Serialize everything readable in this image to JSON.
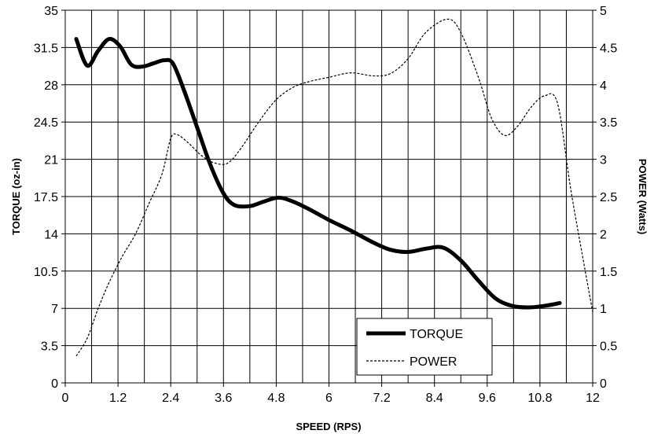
{
  "chart_data": {
    "type": "line",
    "title": "",
    "xlabel": "SPEED (RPS)",
    "ylabel": "TORQUE (oz-in)",
    "y2label": "POWER (Watts)",
    "xlim": [
      0,
      12
    ],
    "ylim": [
      0,
      35
    ],
    "y2lim": [
      0,
      5
    ],
    "x_ticks": [
      "0",
      "1.2",
      "2.4",
      "3.6",
      "4.8",
      "6",
      "7.2",
      "8.4",
      "9.6",
      "10.8",
      "12"
    ],
    "y_ticks": [
      "0",
      "3.5",
      "7",
      "10.5",
      "14",
      "17.5",
      "21",
      "24.5",
      "28",
      "31.5",
      "35"
    ],
    "y2_ticks": [
      "0",
      "0.5",
      "1",
      "1.5",
      "2",
      "2.5",
      "3",
      "3.5",
      "4",
      "4.5",
      "5"
    ],
    "grid": true,
    "legend_position": "bottom-center",
    "series": [
      {
        "name": "TORQUE",
        "axis": "left",
        "style": "solid-thick",
        "color": "#000000",
        "points": [
          [
            0.25,
            32.3
          ],
          [
            0.5,
            29.8
          ],
          [
            0.75,
            31.2
          ],
          [
            1.0,
            32.3
          ],
          [
            1.25,
            31.6
          ],
          [
            1.5,
            29.9
          ],
          [
            1.75,
            29.7
          ],
          [
            2.0,
            30.0
          ],
          [
            2.25,
            30.3
          ],
          [
            2.45,
            30.0
          ],
          [
            2.7,
            27.5
          ],
          [
            3.0,
            24.0
          ],
          [
            3.3,
            20.5
          ],
          [
            3.6,
            17.8
          ],
          [
            3.85,
            16.7
          ],
          [
            4.2,
            16.6
          ],
          [
            4.5,
            17.0
          ],
          [
            4.85,
            17.4
          ],
          [
            5.2,
            17.0
          ],
          [
            5.6,
            16.2
          ],
          [
            6.0,
            15.3
          ],
          [
            6.5,
            14.3
          ],
          [
            7.0,
            13.2
          ],
          [
            7.4,
            12.5
          ],
          [
            7.8,
            12.3
          ],
          [
            8.2,
            12.6
          ],
          [
            8.6,
            12.7
          ],
          [
            9.0,
            11.5
          ],
          [
            9.4,
            9.6
          ],
          [
            9.8,
            7.9
          ],
          [
            10.2,
            7.2
          ],
          [
            10.6,
            7.1
          ],
          [
            11.0,
            7.3
          ],
          [
            11.25,
            7.5
          ]
        ]
      },
      {
        "name": "POWER",
        "axis": "right",
        "style": "dashed-thin",
        "color": "#000000",
        "points": [
          [
            0.25,
            0.36
          ],
          [
            0.5,
            0.6
          ],
          [
            0.75,
            1.0
          ],
          [
            1.0,
            1.35
          ],
          [
            1.3,
            1.7
          ],
          [
            1.6,
            2.0
          ],
          [
            1.9,
            2.4
          ],
          [
            2.2,
            2.8
          ],
          [
            2.4,
            3.28
          ],
          [
            2.55,
            3.33
          ],
          [
            2.8,
            3.22
          ],
          [
            3.1,
            3.05
          ],
          [
            3.4,
            2.95
          ],
          [
            3.7,
            2.95
          ],
          [
            4.0,
            3.15
          ],
          [
            4.4,
            3.5
          ],
          [
            4.8,
            3.8
          ],
          [
            5.2,
            3.97
          ],
          [
            5.6,
            4.05
          ],
          [
            6.0,
            4.1
          ],
          [
            6.5,
            4.16
          ],
          [
            7.0,
            4.12
          ],
          [
            7.4,
            4.15
          ],
          [
            7.8,
            4.35
          ],
          [
            8.2,
            4.7
          ],
          [
            8.7,
            4.88
          ],
          [
            9.0,
            4.7
          ],
          [
            9.4,
            4.1
          ],
          [
            9.7,
            3.55
          ],
          [
            10.0,
            3.32
          ],
          [
            10.3,
            3.45
          ],
          [
            10.6,
            3.7
          ],
          [
            10.9,
            3.85
          ],
          [
            11.2,
            3.75
          ],
          [
            11.5,
            2.6
          ],
          [
            11.8,
            1.6
          ],
          [
            12.0,
            0.95
          ]
        ]
      }
    ]
  }
}
